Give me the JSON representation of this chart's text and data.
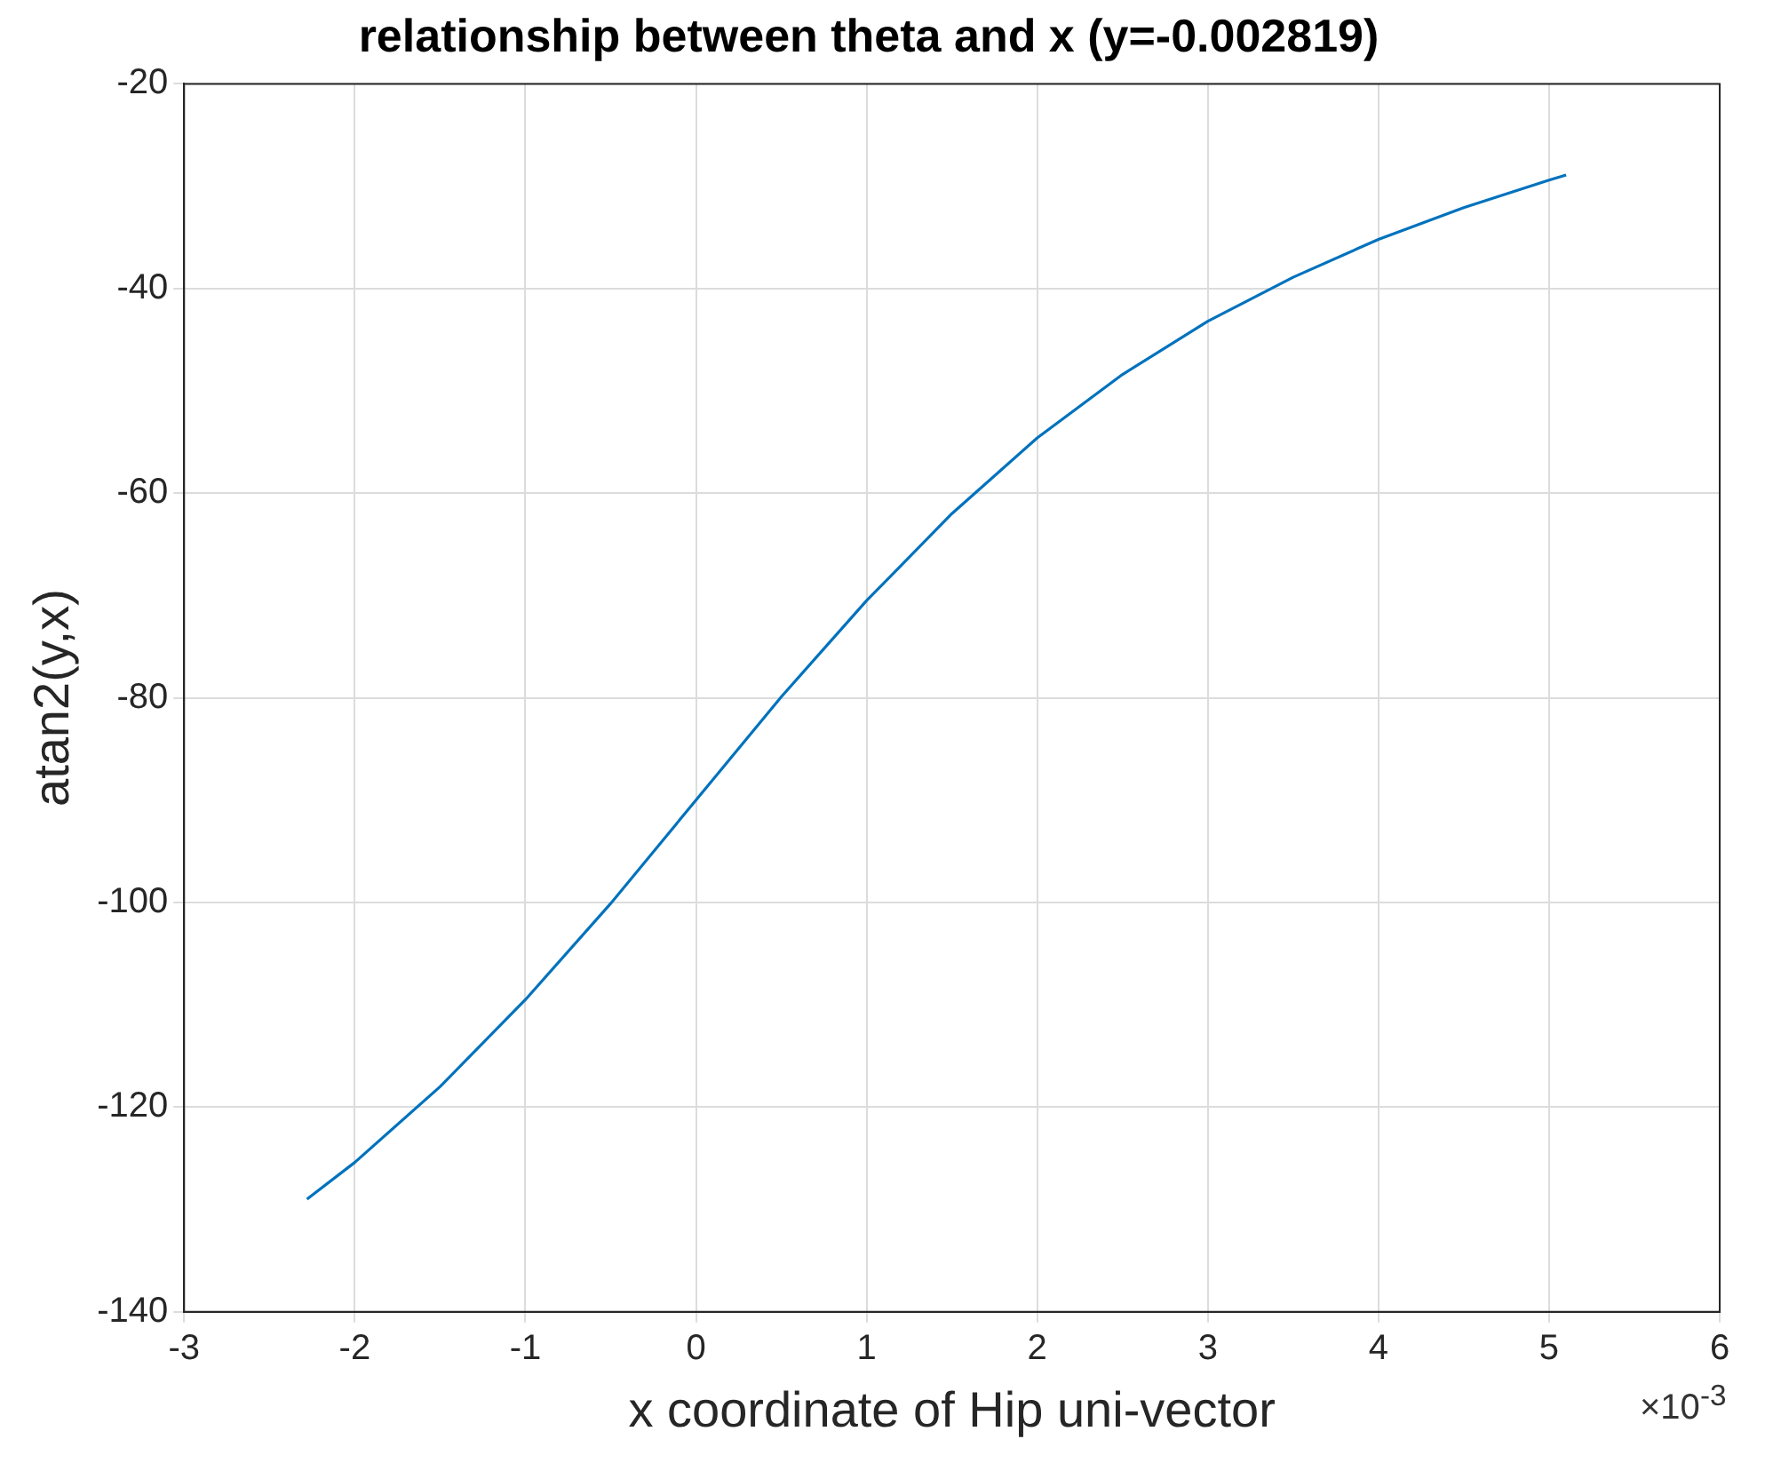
{
  "chart_data": {
    "type": "line",
    "title": "relationship between theta and x (y=-0.002819)",
    "xlabel": "x coordinate of Hip uni-vector",
    "ylabel": "atan2(y,x)",
    "annotations": [
      "×10$^{-3}$"
    ],
    "x": [
      -2.28,
      -2,
      -1.5,
      -1,
      -0.5,
      0,
      0.5,
      1,
      1.5,
      2,
      2.5,
      3,
      3.5,
      4,
      4.5,
      5,
      5.1
    ],
    "series": [
      {
        "color": "#0072bd",
        "values": [
          -129,
          -125.4,
          -118,
          -109.5,
          -100.1,
          -90,
          -79.9,
          -70.5,
          -62,
          -54.6,
          -48.4,
          -43.2,
          -38.9,
          -35.2,
          -32.1,
          -29.4,
          -28.9
        ]
      }
    ],
    "xlim": [
      -3,
      6
    ],
    "xticks": [
      -3,
      -2,
      -1,
      0,
      1,
      2,
      3,
      4,
      5,
      6
    ],
    "ylim": [
      -140,
      -20
    ],
    "yticks": [
      -140,
      -120,
      -100,
      -80,
      -60,
      -40,
      -20
    ],
    "grid": true,
    "legend": false,
    "marker": "none",
    "line_style": "solid"
  }
}
